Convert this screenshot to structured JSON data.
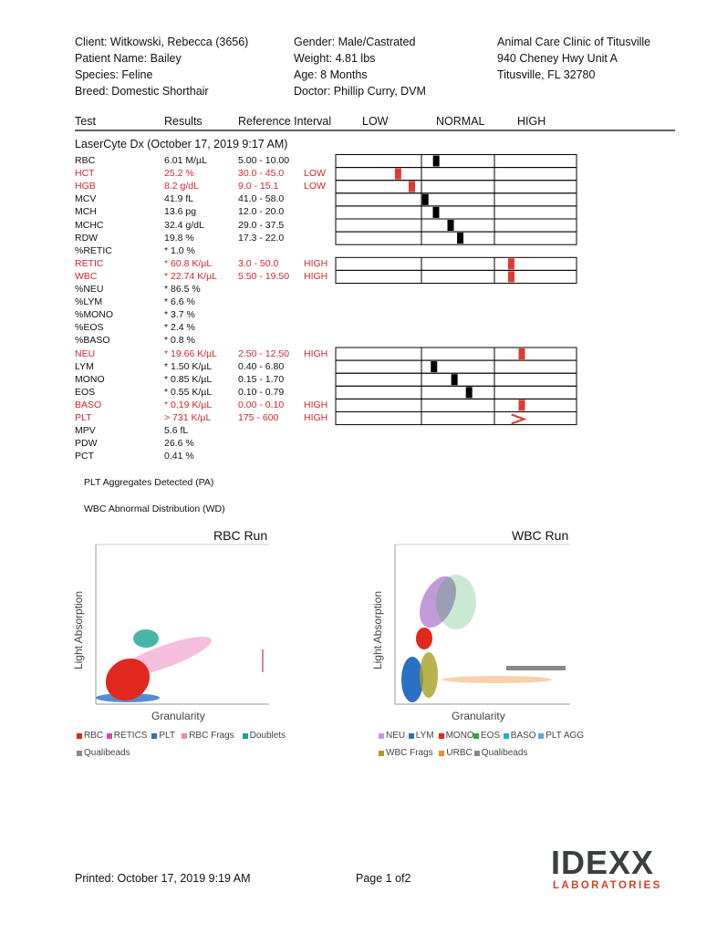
{
  "header": {
    "client": [
      "Client: Witkowski, Rebecca (3656)",
      "Patient Name: Bailey",
      "Species: Feline",
      "Breed: Domestic Shorthair"
    ],
    "patient": [
      "Gender: Male/Castrated",
      "Weight: 4.81 lbs",
      "Age: 8 Months",
      "Doctor: Phillip Curry, DVM"
    ],
    "clinic": [
      "Animal Care Clinic of Titusville",
      "940 Cheney Hwy Unit A",
      "Titusville, FL  32780"
    ]
  },
  "table": {
    "columns": [
      "Test",
      "Results",
      "Reference Interval",
      "LOW",
      "NORMAL",
      "HIGH"
    ],
    "section": "LaserCyte Dx (October 17, 2019 9:17 AM)",
    "rows": [
      [
        "RBC",
        "6.01 M/µL",
        "5.00 - 10.00",
        ""
      ],
      [
        "HCT",
        "25.2 %",
        "30.0 - 45.0",
        "LOW"
      ],
      [
        "HGB",
        "8.2 g/dL",
        "9.0 - 15.1",
        "LOW"
      ],
      [
        "MCV",
        "41.9 fL",
        "41.0 - 58.0",
        ""
      ],
      [
        "MCH",
        "13.6 pg",
        "12.0 - 20.0",
        ""
      ],
      [
        "MCHC",
        "32.4 g/dL",
        "29.0 - 37.5",
        ""
      ],
      [
        "RDW",
        "19.8 %",
        "17.3 - 22.0",
        ""
      ],
      [
        "%RETIC",
        "* 1.0 %",
        "",
        ""
      ],
      [
        "RETIC",
        "* 60.8 K/µL",
        "3.0 - 50.0",
        "HIGH"
      ],
      [
        "WBC",
        "* 22.74 K/µL",
        "5.50 - 19.50",
        "HIGH"
      ],
      [
        "%NEU",
        "* 86.5 %",
        "",
        ""
      ],
      [
        "%LYM",
        "* 6.6 %",
        "",
        ""
      ],
      [
        "%MONO",
        "* 3.7 %",
        "",
        ""
      ],
      [
        "%EOS",
        "* 2.4 %",
        "",
        ""
      ],
      [
        "%BASO",
        "* 0.8 %",
        "",
        ""
      ],
      [
        "NEU",
        "* 19.66 K/µL",
        "2.50 - 12.50",
        "HIGH"
      ],
      [
        "LYM",
        "* 1.50 K/µL",
        "0.40 - 6.80",
        ""
      ],
      [
        "MONO",
        "* 0.85 K/µL",
        "0.15 - 1.70",
        ""
      ],
      [
        "EOS",
        "* 0.55 K/µL",
        "0.10 - 0.79",
        ""
      ],
      [
        "BASO",
        "* 0.19 K/µL",
        "0.00 - 0.10",
        "HIGH"
      ],
      [
        "PLT",
        "> 731 K/µL",
        "175 - 600",
        "HIGH"
      ],
      [
        "MPV",
        "5.6 fL",
        "",
        ""
      ],
      [
        "PDW",
        "26.6 %",
        "",
        ""
      ],
      [
        "PCT",
        "0.41 %",
        "",
        ""
      ]
    ]
  },
  "notes": [
    "PLT Aggregates Detected (PA)",
    "WBC Abnormal Distribution (WD)"
  ],
  "plots": [
    {
      "title": "RBC Run",
      "y_label": "Light Absorption",
      "x_label": "Granularity",
      "legend": [
        {
          "name": "RBC",
          "color": "#e0281e"
        },
        {
          "name": "RETICS",
          "color": "#e0449a"
        },
        {
          "name": "PLT",
          "color": "#2a6fc4"
        },
        {
          "name": "RBC Frags",
          "color": "#f08aa8"
        },
        {
          "name": "Doublets",
          "color": "#1aa391"
        },
        {
          "name": "Qualibeads",
          "color": "#888888"
        }
      ]
    },
    {
      "title": "WBC Run",
      "y_label": "Light Absorption",
      "x_label": "Granularity",
      "legend": [
        {
          "name": "NEU",
          "color": "#c39ad8"
        },
        {
          "name": "LYM",
          "color": "#2a6fc4"
        },
        {
          "name": "MONO",
          "color": "#e0281e"
        },
        {
          "name": "EOS",
          "color": "#2aa84a"
        },
        {
          "name": "BASO",
          "color": "#1ab0d8"
        },
        {
          "name": "PLT AGG",
          "color": "#5aa8e0"
        },
        {
          "name": "WBC Frags",
          "color": "#a8a020"
        },
        {
          "name": "URBC",
          "color": "#f08a30"
        },
        {
          "name": "Qualibeads",
          "color": "#888888"
        }
      ]
    }
  ],
  "footer": {
    "printed": "Printed: October 17, 2019 9:19 AM",
    "page": "Page 1 of2",
    "logo": "IDEXX",
    "logo_sub": "LABORATORIES"
  }
}
